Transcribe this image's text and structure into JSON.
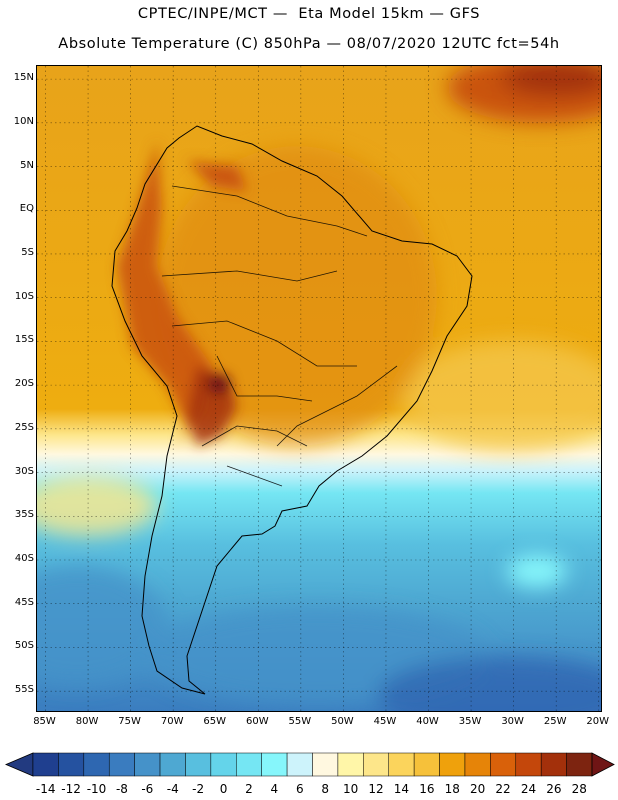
{
  "header": {
    "line1": "CPTEC/INPE/MCT —  Eta Model 15km — GFS",
    "line2": "Absolute Temperature (C) 850hPa — 08/07/2020 12UTC fct=54h"
  },
  "map": {
    "lat_labels": [
      "15N",
      "10N",
      "5N",
      "EQ",
      "5S",
      "10S",
      "15S",
      "20S",
      "25S",
      "30S",
      "35S",
      "40S",
      "45S",
      "50S",
      "55S"
    ],
    "lon_labels": [
      "85W",
      "80W",
      "75W",
      "70W",
      "65W",
      "60W",
      "55W",
      "50W",
      "45W",
      "40W",
      "35W",
      "30W",
      "25W",
      "20W"
    ],
    "extent": {
      "lon_min": -86,
      "lon_max": -19.5,
      "lat_min": -57.5,
      "lat_max": 16.5
    },
    "outline_name": "South America coastline"
  },
  "legend": {
    "labels": [
      "-14",
      "-12",
      "-10",
      "-8",
      "-6",
      "-4",
      "-2",
      "0",
      "2",
      "4",
      "6",
      "8",
      "10",
      "12",
      "14",
      "16",
      "18",
      "20",
      "22",
      "24",
      "26",
      "28"
    ],
    "colors": [
      "#1f3f8f",
      "#2552a0",
      "#2e67b1",
      "#3a7cbf",
      "#4592c9",
      "#4ea8d2",
      "#58bfdf",
      "#64d4ea",
      "#75e6f3",
      "#86f6fb",
      "#cdf3fb",
      "#fff8e0",
      "#fff6a8",
      "#fde68a",
      "#fbd45c",
      "#f6c13a",
      "#efa10c",
      "#e68408",
      "#d9610a",
      "#c4470b",
      "#a3300b",
      "#7d2410"
    ],
    "under_color": "#223a80",
    "over_color": "#6f1515"
  }
}
